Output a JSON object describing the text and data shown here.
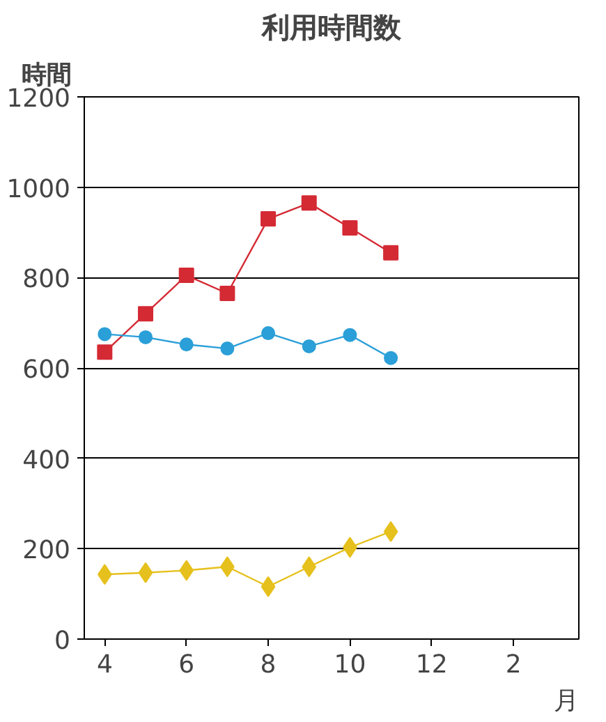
{
  "chart_data": {
    "type": "line",
    "title": "利用時間数",
    "ylabel": "時間",
    "xlabel": "月",
    "categories": [
      "4",
      null,
      "6",
      null,
      "8",
      null,
      "10",
      null,
      "12",
      null,
      "2",
      null
    ],
    "series": [
      {
        "color": "#d42a34",
        "marker": "square",
        "values": [
          635,
          720,
          805,
          765,
          930,
          965,
          910,
          855,
          null,
          null,
          null,
          null
        ]
      },
      {
        "color": "#2b9fd8",
        "marker": "circle",
        "values": [
          675,
          668,
          652,
          643,
          677,
          648,
          673,
          622,
          null,
          null,
          null,
          null
        ]
      },
      {
        "color": "#e6c01c",
        "marker": "diamond",
        "values": [
          143,
          147,
          152,
          160,
          116,
          160,
          203,
          238,
          null,
          null,
          null,
          null
        ]
      }
    ],
    "ylim": [
      0,
      1200
    ],
    "yticks": [
      0,
      200,
      400,
      600,
      800,
      1000,
      1200
    ],
    "grid": "y",
    "line_style": "solid"
  }
}
